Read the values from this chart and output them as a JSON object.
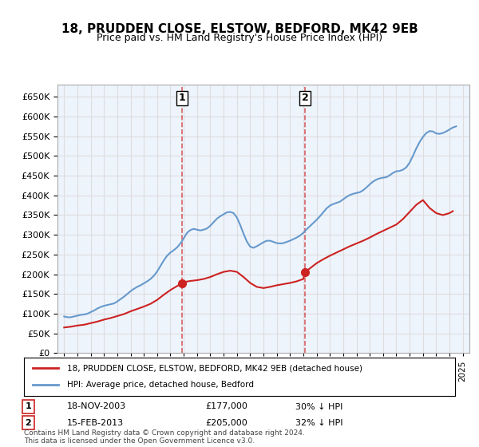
{
  "title": "18, PRUDDEN CLOSE, ELSTOW, BEDFORD, MK42 9EB",
  "subtitle": "Price paid vs. HM Land Registry's House Price Index (HPI)",
  "hpi_color": "#6699cc",
  "price_color": "#cc2222",
  "background_color": "#ffffff",
  "grid_color": "#dddddd",
  "plot_bg_color": "#eef4fc",
  "ylim": [
    0,
    680000
  ],
  "yticks": [
    0,
    50000,
    100000,
    150000,
    200000,
    250000,
    300000,
    350000,
    400000,
    450000,
    500000,
    550000,
    600000,
    650000
  ],
  "xlim_start": 1994.5,
  "xlim_end": 2025.5,
  "sale1_x": 2003.88,
  "sale1_y": 177000,
  "sale2_x": 2013.12,
  "sale2_y": 205000,
  "sale1_label": "18-NOV-2003",
  "sale1_price": "£177,000",
  "sale1_note": "30% ↓ HPI",
  "sale2_label": "15-FEB-2013",
  "sale2_price": "£205,000",
  "sale2_note": "32% ↓ HPI",
  "legend_line1": "18, PRUDDEN CLOSE, ELSTOW, BEDFORD, MK42 9EB (detached house)",
  "legend_line2": "HPI: Average price, detached house, Bedford",
  "footer": "Contains HM Land Registry data © Crown copyright and database right 2024.\nThis data is licensed under the Open Government Licence v3.0.",
  "hpi_years": [
    1995,
    1995.25,
    1995.5,
    1995.75,
    1996,
    1996.25,
    1996.5,
    1996.75,
    1997,
    1997.25,
    1997.5,
    1997.75,
    1998,
    1998.25,
    1998.5,
    1998.75,
    1999,
    1999.25,
    1999.5,
    1999.75,
    2000,
    2000.25,
    2000.5,
    2000.75,
    2001,
    2001.25,
    2001.5,
    2001.75,
    2002,
    2002.25,
    2002.5,
    2002.75,
    2003,
    2003.25,
    2003.5,
    2003.75,
    2004,
    2004.25,
    2004.5,
    2004.75,
    2005,
    2005.25,
    2005.5,
    2005.75,
    2006,
    2006.25,
    2006.5,
    2006.75,
    2007,
    2007.25,
    2007.5,
    2007.75,
    2008,
    2008.25,
    2008.5,
    2008.75,
    2009,
    2009.25,
    2009.5,
    2009.75,
    2010,
    2010.25,
    2010.5,
    2010.75,
    2011,
    2011.25,
    2011.5,
    2011.75,
    2012,
    2012.25,
    2012.5,
    2012.75,
    2013,
    2013.25,
    2013.5,
    2013.75,
    2014,
    2014.25,
    2014.5,
    2014.75,
    2015,
    2015.25,
    2015.5,
    2015.75,
    2016,
    2016.25,
    2016.5,
    2016.75,
    2017,
    2017.25,
    2017.5,
    2017.75,
    2018,
    2018.25,
    2018.5,
    2018.75,
    2019,
    2019.25,
    2019.5,
    2019.75,
    2020,
    2020.25,
    2020.5,
    2020.75,
    2021,
    2021.25,
    2021.5,
    2021.75,
    2022,
    2022.25,
    2022.5,
    2022.75,
    2023,
    2023.25,
    2023.5,
    2023.75,
    2024,
    2024.25,
    2024.5
  ],
  "hpi_values": [
    93000,
    91000,
    91000,
    93000,
    95000,
    97000,
    98000,
    100000,
    104000,
    108000,
    113000,
    117000,
    120000,
    122000,
    124000,
    126000,
    131000,
    137000,
    143000,
    150000,
    157000,
    163000,
    168000,
    172000,
    177000,
    182000,
    188000,
    196000,
    207000,
    221000,
    235000,
    247000,
    255000,
    261000,
    268000,
    278000,
    291000,
    305000,
    312000,
    315000,
    313000,
    311000,
    313000,
    316000,
    323000,
    332000,
    341000,
    347000,
    352000,
    357000,
    358000,
    355000,
    344000,
    325000,
    303000,
    283000,
    270000,
    267000,
    271000,
    276000,
    281000,
    285000,
    285000,
    282000,
    279000,
    278000,
    279000,
    282000,
    285000,
    289000,
    293000,
    298000,
    305000,
    314000,
    322000,
    330000,
    338000,
    347000,
    357000,
    367000,
    374000,
    378000,
    381000,
    384000,
    390000,
    396000,
    401000,
    404000,
    406000,
    408000,
    413000,
    420000,
    428000,
    435000,
    440000,
    443000,
    445000,
    446000,
    451000,
    457000,
    461000,
    462000,
    465000,
    471000,
    483000,
    500000,
    519000,
    535000,
    548000,
    558000,
    563000,
    562000,
    557000,
    556000,
    558000,
    562000,
    567000,
    572000,
    575000
  ],
  "price_years": [
    1995,
    1995.5,
    1996,
    1996.5,
    1997,
    1997.5,
    1998,
    1998.5,
    1999,
    1999.5,
    2000,
    2000.5,
    2001,
    2001.5,
    2002,
    2002.5,
    2003,
    2003.25,
    2003.5,
    2003.75,
    2004,
    2004.5,
    2005,
    2005.5,
    2006,
    2006.5,
    2007,
    2007.5,
    2008,
    2008.5,
    2009,
    2009.5,
    2010,
    2010.5,
    2011,
    2011.5,
    2012,
    2012.5,
    2013,
    2013.12,
    2013.5,
    2014,
    2014.5,
    2015,
    2015.5,
    2016,
    2016.5,
    2017,
    2017.5,
    2018,
    2018.5,
    2019,
    2019.5,
    2020,
    2020.5,
    2021,
    2021.5,
    2022,
    2022.5,
    2023,
    2023.5,
    2024,
    2024.25
  ],
  "price_values": [
    65000,
    67000,
    70000,
    72000,
    76000,
    80000,
    85000,
    89000,
    94000,
    99000,
    106000,
    112000,
    118000,
    125000,
    135000,
    148000,
    160000,
    165000,
    170000,
    175000,
    180000,
    183000,
    185000,
    188000,
    193000,
    200000,
    206000,
    209000,
    206000,
    193000,
    178000,
    168000,
    165000,
    168000,
    172000,
    175000,
    178000,
    182000,
    188000,
    205000,
    215000,
    228000,
    238000,
    247000,
    255000,
    263000,
    271000,
    278000,
    285000,
    293000,
    302000,
    310000,
    318000,
    326000,
    340000,
    358000,
    376000,
    388000,
    368000,
    355000,
    350000,
    355000,
    360000
  ]
}
